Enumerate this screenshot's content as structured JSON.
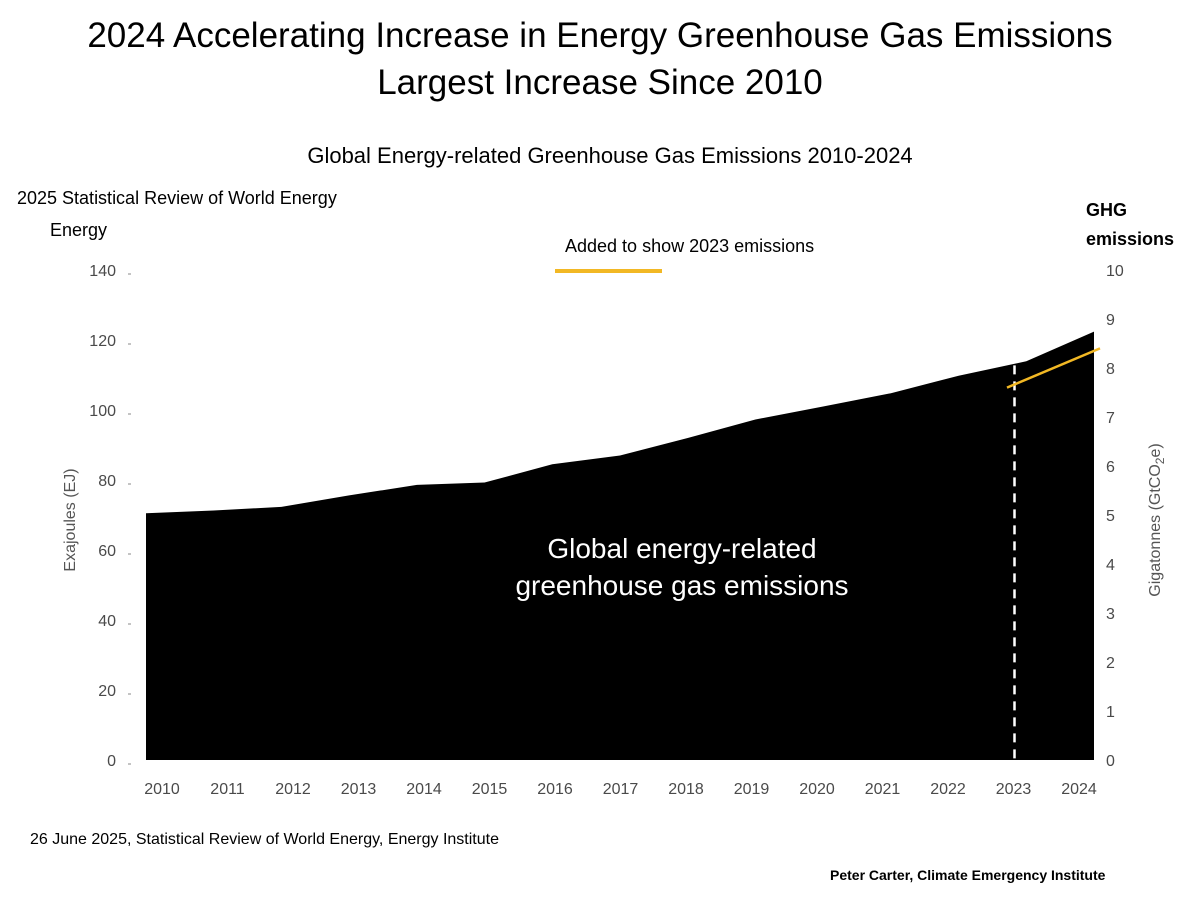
{
  "header": {
    "title_line1": "2024 Accelerating Increase in Energy Greenhouse Gas Emissions",
    "title_line2": "Largest Increase Since 2010"
  },
  "chart_data": {
    "type": "area",
    "title": "Global Energy-related Greenhouse Gas Emissions 2010-2024",
    "source_note": "2025 Statistical Review of World Energy",
    "left_axis_unit": "Energy",
    "right_axis_unit_line1": "GHG",
    "right_axis_unit_line2": "emissions",
    "ylabel_left": "Exajoules (EJ)",
    "ylabel_right": "Gigatonnes (GtCO2e)",
    "ylim_left": [
      0,
      140
    ],
    "ylim_right": [
      0,
      10
    ],
    "yticks_left": [
      "0",
      "20",
      "40",
      "60",
      "80",
      "100",
      "120",
      "140"
    ],
    "yticks_right": [
      "0",
      "1",
      "2",
      "3",
      "4",
      "5",
      "6",
      "7",
      "8",
      "9",
      "10"
    ],
    "categories": [
      "2010",
      "2011",
      "2012",
      "2013",
      "2014",
      "2015",
      "2016",
      "2017",
      "2018",
      "2019",
      "2020",
      "2021",
      "2022",
      "2023",
      "2024"
    ],
    "series": [
      {
        "name": "Global energy-related greenhouse gas emissions",
        "color": "#000000",
        "values": [
          70.5,
          71.3,
          72.3,
          75.6,
          78.6,
          79.3,
          84.5,
          87.0,
          92.0,
          97.3,
          101.0,
          104.8,
          109.8,
          113.9,
          122.4
        ]
      }
    ],
    "annotations": {
      "area_label_line1": "Global energy-related",
      "area_label_line2": "greenhouse gas emissions",
      "legend_label": "Added to show 2023 emissions",
      "legend_color": "#f2b824",
      "marker_year": "2023",
      "trend_line_gt": [
        7.6,
        8.4
      ]
    },
    "grid": false,
    "legend_position": "top-center"
  },
  "footer": {
    "source": "26 June 2025, Statistical Review of World Energy, Energy Institute",
    "credit": "Peter Carter, Climate Emergency Institute"
  }
}
